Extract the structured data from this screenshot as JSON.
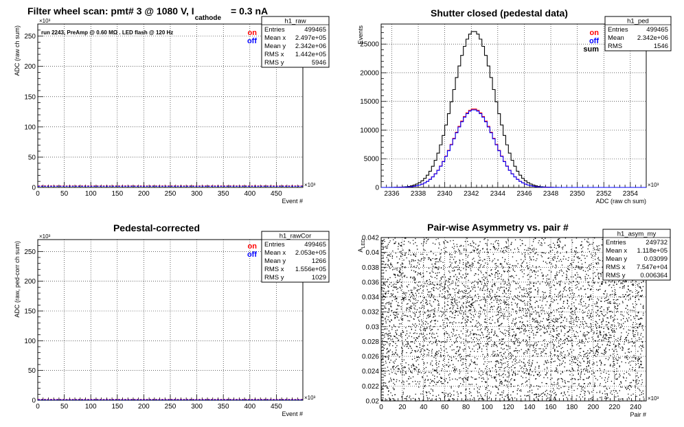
{
  "chart_data": [
    {
      "id": "raw",
      "type": "line",
      "title_main": "Filter wheel scan: pmt#   3 @  1080 V, I",
      "title_sub": "cathode",
      "title_end": "= 0.3 nA",
      "note": "run 2243, PreAmp @ 0.60 MΩ . LED flash @  120 Hz",
      "xlabel": "Event #",
      "ylabel": "ADC (raw ch sum)",
      "xlim": [
        0,
        500
      ],
      "ylim": [
        0,
        270
      ],
      "x_exponent": "×10³",
      "y_exponent": "×10³",
      "xticks": [
        "0",
        "50",
        "100",
        "150",
        "200",
        "250",
        "300",
        "350",
        "400",
        "450"
      ],
      "yticks": [
        "0",
        "50",
        "100",
        "150",
        "200",
        "250"
      ],
      "grid": true,
      "legend": [
        "on",
        "off"
      ],
      "legend_colors": [
        "#ff0000",
        "#0000ff"
      ],
      "series": [
        {
          "name": "on",
          "color": "#ff0000",
          "values_description_free": true,
          "level": 2.342
        },
        {
          "name": "off",
          "color": "#0000ff",
          "level": 2.342
        }
      ],
      "stats": {
        "name": "h1_raw",
        "rows": [
          [
            "Entries",
            "499465"
          ],
          [
            "Mean x",
            "2.497e+05"
          ],
          [
            "Mean y",
            "2.342e+06"
          ],
          [
            "RMS x",
            "1.442e+05"
          ],
          [
            "RMS y",
            "5946"
          ]
        ]
      }
    },
    {
      "id": "ped",
      "type": "line",
      "title": "Shutter closed (pedestal data)",
      "xlabel": "ADC (raw ch sum)",
      "ylabel": "Events",
      "xlim": [
        2335.2,
        2355.2
      ],
      "ylim": [
        0,
        28500
      ],
      "x_exponent": "×10³",
      "xticks": [
        "2336",
        "2338",
        "2340",
        "2342",
        "2344",
        "2346",
        "2348",
        "2350",
        "2352",
        "2354"
      ],
      "yticks": [
        "0",
        "5000",
        "10000",
        "15000",
        "20000",
        "25000"
      ],
      "grid": true,
      "legend": [
        "on",
        "off",
        "sum"
      ],
      "legend_colors": [
        "#ff0000",
        "#0000ff",
        "#000000"
      ],
      "series": [
        {
          "name": "on",
          "color": "#ff0000",
          "mean": 2342.2,
          "sigma": 1.55,
          "peak": 13700
        },
        {
          "name": "off",
          "color": "#0000ff",
          "mean": 2342.2,
          "sigma": 1.55,
          "peak": 13550
        },
        {
          "name": "sum",
          "color": "#000000",
          "mean": 2342.2,
          "sigma": 1.55,
          "peak": 27250
        }
      ],
      "stats": {
        "name": "h1_ped",
        "rows": [
          [
            "Entries",
            "499465"
          ],
          [
            "Mean",
            "2.342e+06"
          ],
          [
            "RMS",
            "1546"
          ]
        ]
      }
    },
    {
      "id": "rawcor",
      "type": "line",
      "title": "Pedestal-corrected",
      "xlabel": "Event #",
      "ylabel": "ADC (raw, ped-corr ch sum)",
      "xlim": [
        0,
        500
      ],
      "ylim": [
        0,
        270
      ],
      "x_exponent": "×10³",
      "y_exponent": "×10³",
      "xticks": [
        "0",
        "50",
        "100",
        "150",
        "200",
        "250",
        "300",
        "350",
        "400",
        "450"
      ],
      "yticks": [
        "0",
        "50",
        "100",
        "150",
        "200",
        "250"
      ],
      "grid": true,
      "legend": [
        "on",
        "off"
      ],
      "legend_colors": [
        "#ff0000",
        "#0000ff"
      ],
      "series": [
        {
          "name": "on",
          "color": "#ff0000",
          "level": 1.266
        },
        {
          "name": "off",
          "color": "#0000ff",
          "level": 1.266
        }
      ],
      "stats": {
        "name": "h1_rawCor",
        "rows": [
          [
            "Entries",
            "499465"
          ],
          [
            "Mean x",
            "2.053e+05"
          ],
          [
            "Mean y",
            "1266"
          ],
          [
            "RMS x",
            "1.556e+05"
          ],
          [
            "RMS y",
            "1029"
          ]
        ]
      }
    },
    {
      "id": "asym",
      "type": "scatter",
      "title": "Pair-wise Asymmetry vs. pair #",
      "xlabel": "Pair #",
      "ylabel": "A",
      "ylabel_sub": "LED",
      "xlim": [
        0,
        250
      ],
      "ylim": [
        0.02,
        0.042
      ],
      "x_exponent": "×10³",
      "xticks": [
        "0",
        "20",
        "40",
        "60",
        "80",
        "100",
        "120",
        "140",
        "160",
        "180",
        "200",
        "220",
        "240"
      ],
      "yticks": [
        "0.02",
        "0.022",
        "0.024",
        "0.026",
        "0.028",
        "0.03",
        "0.032",
        "0.034",
        "0.036",
        "0.038",
        "0.04",
        "0.042"
      ],
      "grid": true,
      "series": [
        {
          "name": "h1_asym_my",
          "mean_y": 0.03099,
          "rms_y": 0.006364,
          "color": "#000000"
        }
      ],
      "stats": {
        "name": "h1_asym_my",
        "rows": [
          [
            "Entries",
            "249732"
          ],
          [
            "Mean x",
            "1.118e+05"
          ],
          [
            "Mean y",
            "0.03099"
          ],
          [
            "RMS x",
            "7.547e+04"
          ],
          [
            "RMS y",
            "0.006364"
          ]
        ]
      }
    }
  ]
}
